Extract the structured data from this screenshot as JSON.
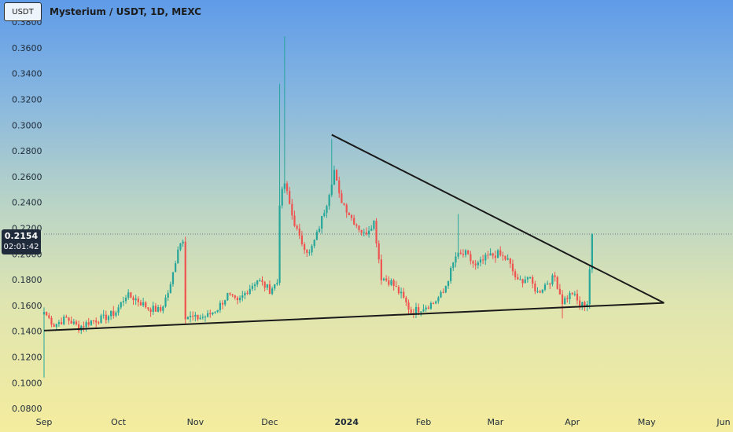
{
  "header": {
    "symbol_box": "USDT",
    "title": "Mysterium / USDT, 1D, MEXC"
  },
  "price_label": {
    "price": "0.2154",
    "countdown": "02:01:42"
  },
  "colors": {
    "up": "#26a69a",
    "down": "#ef5350",
    "trendline": "#1a1a1a",
    "axis_text": "#1e2a38"
  },
  "chart_data": {
    "type": "candlestick",
    "y_ticks": [
      "0.0800",
      "0.1000",
      "0.1200",
      "0.1400",
      "0.1600",
      "0.1800",
      "0.2000",
      "0.2200",
      "0.2400",
      "0.2600",
      "0.2800",
      "0.3000",
      "0.3200",
      "0.3400",
      "0.3600",
      "0.3800"
    ],
    "x_ticks": [
      "Sep",
      "Oct",
      "Nov",
      "Dec",
      "2024",
      "Feb",
      "Mar",
      "Apr",
      "May",
      "Jun"
    ],
    "ylim": [
      0.074,
      0.391
    ],
    "xlim": [
      "2023-09-01",
      "2024-06-01"
    ],
    "current_price": 0.2154,
    "ohlc_anchors": [
      [
        "2023-09-01",
        0.155
      ],
      [
        "2023-09-05",
        0.145
      ],
      [
        "2023-09-10",
        0.15
      ],
      [
        "2023-09-15",
        0.143
      ],
      [
        "2023-09-20",
        0.148
      ],
      [
        "2023-09-25",
        0.15
      ],
      [
        "2023-09-30",
        0.155
      ],
      [
        "2023-10-04",
        0.168
      ],
      [
        "2023-10-08",
        0.165
      ],
      [
        "2023-10-13",
        0.158
      ],
      [
        "2023-10-18",
        0.156
      ],
      [
        "2023-10-22",
        0.175
      ],
      [
        "2023-10-25",
        0.205
      ],
      [
        "2023-10-27",
        0.212
      ],
      [
        "2023-10-28",
        0.152
      ],
      [
        "2023-11-01",
        0.15
      ],
      [
        "2023-11-06",
        0.152
      ],
      [
        "2023-11-10",
        0.158
      ],
      [
        "2023-11-14",
        0.168
      ],
      [
        "2023-11-18",
        0.162
      ],
      [
        "2023-11-22",
        0.172
      ],
      [
        "2023-11-26",
        0.18
      ],
      [
        "2023-12-01",
        0.172
      ],
      [
        "2023-12-04",
        0.178
      ],
      [
        "2023-12-05",
        0.24
      ],
      [
        "2023-12-07",
        0.255
      ],
      [
        "2023-12-10",
        0.23
      ],
      [
        "2023-12-13",
        0.212
      ],
      [
        "2023-12-17",
        0.2
      ],
      [
        "2023-12-20",
        0.215
      ],
      [
        "2023-12-24",
        0.24
      ],
      [
        "2023-12-27",
        0.265
      ],
      [
        "2023-12-29",
        0.245
      ],
      [
        "2024-01-03",
        0.228
      ],
      [
        "2024-01-08",
        0.215
      ],
      [
        "2024-01-12",
        0.225
      ],
      [
        "2024-01-15",
        0.182
      ],
      [
        "2024-01-19",
        0.178
      ],
      [
        "2024-01-23",
        0.168
      ],
      [
        "2024-01-27",
        0.155
      ],
      [
        "2024-01-31",
        0.158
      ],
      [
        "2024-02-05",
        0.162
      ],
      [
        "2024-02-09",
        0.17
      ],
      [
        "2024-02-14",
        0.198
      ],
      [
        "2024-02-18",
        0.2
      ],
      [
        "2024-02-22",
        0.19
      ],
      [
        "2024-02-27",
        0.198
      ],
      [
        "2024-03-02",
        0.2
      ],
      [
        "2024-03-06",
        0.195
      ],
      [
        "2024-03-10",
        0.178
      ],
      [
        "2024-03-14",
        0.182
      ],
      [
        "2024-03-18",
        0.17
      ],
      [
        "2024-03-22",
        0.178
      ],
      [
        "2024-03-25",
        0.182
      ],
      [
        "2024-03-28",
        0.163
      ],
      [
        "2024-04-01",
        0.17
      ],
      [
        "2024-04-04",
        0.16
      ],
      [
        "2024-04-07",
        0.162
      ],
      [
        "2024-04-09",
        0.2154
      ]
    ],
    "spikes": [
      [
        "2023-09-01",
        0.104
      ],
      [
        "2023-12-05",
        0.332
      ],
      [
        "2023-12-07",
        0.369
      ],
      [
        "2023-12-26",
        0.289
      ],
      [
        "2024-02-15",
        0.231
      ],
      [
        "2024-03-28",
        0.15
      ]
    ],
    "trendlines": [
      {
        "name": "support",
        "from": [
          "2023-09-01",
          0.1405
        ],
        "to": [
          "2024-05-08",
          0.162
        ]
      },
      {
        "name": "resistance",
        "from": [
          "2023-12-26",
          0.2925
        ],
        "to": [
          "2024-05-08",
          0.162
        ]
      }
    ]
  }
}
